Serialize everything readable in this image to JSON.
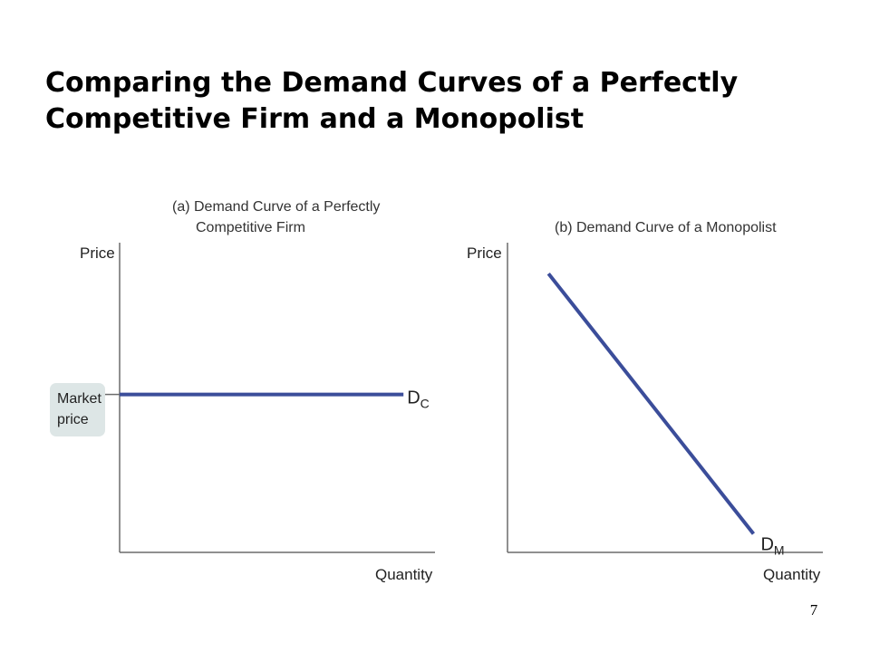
{
  "slide": {
    "title_lines": [
      "Comparing the Demand Curves of a Perfectly",
      "Competitive Firm and a Monopolist"
    ],
    "page_number": "7"
  },
  "chart_data": [
    {
      "type": "line",
      "title_lines": [
        "(a) Demand Curve of a Perfectly",
        "Competitive Firm"
      ],
      "xlabel": "Quantity",
      "ylabel": "Price",
      "xlim": [
        0,
        10
      ],
      "ylim": [
        0,
        10
      ],
      "series": [
        {
          "name": "DC",
          "label_main": "D",
          "label_sub": "C",
          "color": "#3b4d9a",
          "x": [
            0,
            9.0
          ],
          "y": [
            5.1,
            5.1
          ]
        }
      ],
      "annotations": [
        {
          "text_lines": [
            "Market",
            "price"
          ],
          "y": 5.1,
          "box_color": "#dde6e6"
        }
      ],
      "grid": false
    },
    {
      "type": "line",
      "title_lines": [
        "(b) Demand Curve of a Monopolist"
      ],
      "xlabel": "Quantity",
      "ylabel": "Price",
      "xlim": [
        0,
        10
      ],
      "ylim": [
        0,
        10
      ],
      "series": [
        {
          "name": "DM",
          "label_main": "D",
          "label_sub": "M",
          "color": "#3b4d9a",
          "x": [
            1.3,
            7.8
          ],
          "y": [
            9.0,
            0.6
          ]
        }
      ],
      "grid": false
    }
  ]
}
